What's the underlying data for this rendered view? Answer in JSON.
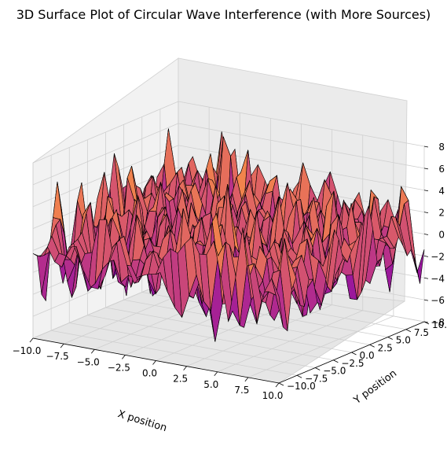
{
  "chart_data": {
    "type": "surface",
    "title": "3D Surface Plot of Circular Wave Interference (with More Sources)",
    "xlabel": "X position",
    "ylabel": "Y position",
    "zlabel": "",
    "xlim": [
      -10,
      10
    ],
    "ylim": [
      -10,
      10
    ],
    "zlim": [
      -8,
      8
    ],
    "x_ticks": [
      "−10.0",
      "−7.5",
      "−5.0",
      "−2.5",
      "0.0",
      "2.5",
      "5.0",
      "7.5",
      "10.0"
    ],
    "y_ticks": [
      "−10.0",
      "−7.5",
      "−5.0",
      "−2.5",
      "0.0",
      "2.5",
      "5.0",
      "7.5",
      "10.0"
    ],
    "z_ticks": [
      "−8",
      "−6",
      "−4",
      "−2",
      "0",
      "2",
      "4",
      "6",
      "8"
    ],
    "colormap": "plasma",
    "edgecolor": "#000000",
    "grid": true,
    "description_values": {
      "z_range_approx": [
        -8,
        8
      ]
    }
  }
}
